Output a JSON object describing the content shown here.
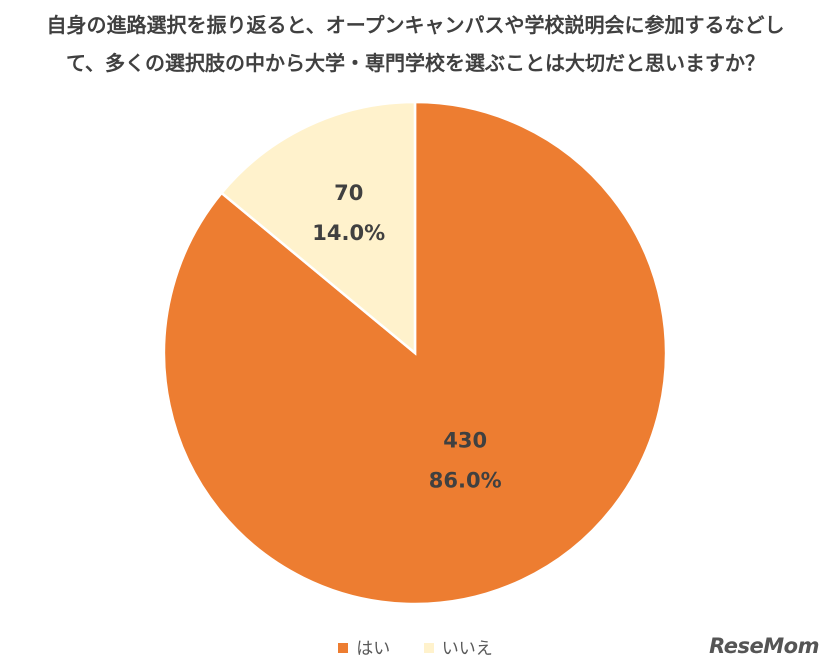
{
  "title_lines": [
    "自身の進路選択を振り返ると、オープンキャンパスや学校説明会に参加するなどし",
    "て、多くの選択肢の中から大学・専門学校を選ぶことは大切だと思いますか？"
  ],
  "chart_data": {
    "type": "pie",
    "categories": [
      "はい",
      "いいえ"
    ],
    "values": [
      430,
      70
    ],
    "percent_labels": [
      "86.0%",
      "14.0%"
    ],
    "colors": [
      "#ED7D31",
      "#FFF2CC"
    ],
    "start_angle_deg": 0,
    "direction": "clockwise",
    "legend_position": "bottom"
  },
  "logo_text": "ReseMom"
}
